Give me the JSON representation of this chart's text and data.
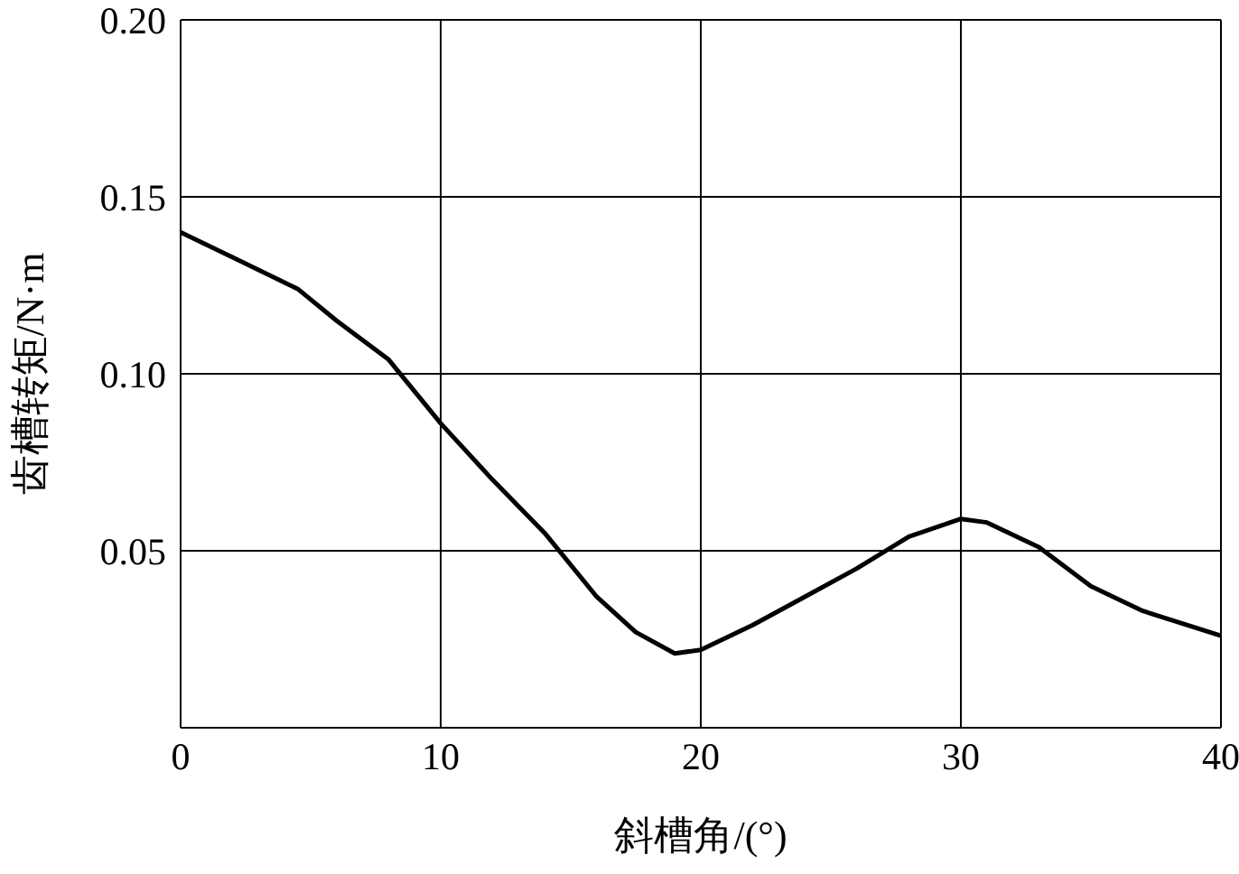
{
  "chart_data": {
    "type": "line",
    "xlabel": "斜槽角/(°)",
    "ylabel": "齿槽转矩/N·m",
    "x": [
      0,
      4.5,
      6,
      8,
      10,
      12,
      14,
      16,
      17.5,
      19,
      20,
      22,
      24,
      26,
      28,
      30,
      31,
      33,
      35,
      37,
      40
    ],
    "series": [
      {
        "color": "#000000",
        "values": [
          0.14,
          0.124,
          0.115,
          0.104,
          0.086,
          0.07,
          0.055,
          0.037,
          0.027,
          0.021,
          0.022,
          0.029,
          0.037,
          0.045,
          0.054,
          0.059,
          0.058,
          0.051,
          0.04,
          0.033,
          0.026
        ]
      }
    ],
    "xlim": [
      0,
      40
    ],
    "xticks": [
      0,
      10,
      20,
      30,
      40
    ],
    "ylim": [
      0,
      0.2
    ],
    "yticks": [
      {
        "value": 0,
        "label": null
      },
      0.05,
      {
        "value": 0.1,
        "label": "0.10"
      },
      0.15,
      {
        "value": 0.2,
        "label": "0.20"
      }
    ],
    "grid": true,
    "marker": "none",
    "line_style": "solid"
  }
}
